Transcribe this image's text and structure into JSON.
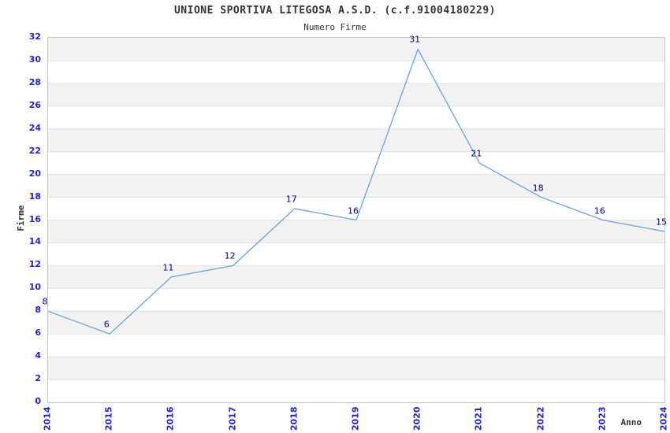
{
  "header": {
    "title": "UNIONE SPORTIVA LITEGOSA A.S.D. (c.f.91004180229)",
    "subtitle": "Numero Firme"
  },
  "chart_data": {
    "type": "line",
    "title": "UNIONE SPORTIVA LITEGOSA A.S.D. (c.f.91004180229)",
    "subtitle": "Numero Firme",
    "xlabel": "Anno",
    "ylabel": "Firme",
    "categories": [
      "2014",
      "2015",
      "2016",
      "2017",
      "2018",
      "2019",
      "2020",
      "2021",
      "2022",
      "2023",
      "2024"
    ],
    "values": [
      8,
      6,
      11,
      12,
      17,
      16,
      31,
      21,
      18,
      16,
      15
    ],
    "ylim": [
      0,
      32
    ],
    "ytick_step": 2,
    "grid": true,
    "legend": "none",
    "data_labels": true,
    "colors": {
      "line": "#6ba2dd",
      "tick_label": "#2323cd",
      "data_label": "#00008b",
      "band_fill": "#f2f2f2",
      "gridline": "#e2e2e2",
      "plot_border": "#c6c6c6",
      "text": "#333333"
    }
  }
}
